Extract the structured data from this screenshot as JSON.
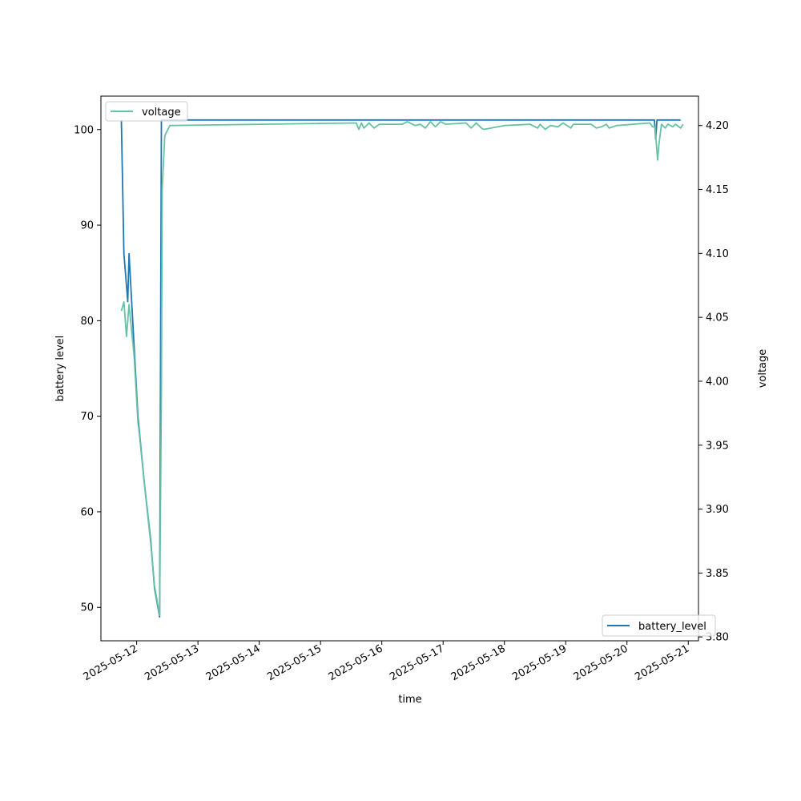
{
  "chart_data": {
    "type": "line",
    "title": "",
    "xlabel": "time",
    "ylabel_left": "battery level",
    "ylabel_right": "voltage",
    "xlim": [
      "2025-05-11 10:00",
      "2025-05-21 04:00"
    ],
    "ylim_left": [
      46.5,
      103.5
    ],
    "ylim_right": [
      3.797,
      4.223
    ],
    "x_ticks": [
      "2025-05-12",
      "2025-05-13",
      "2025-05-14",
      "2025-05-15",
      "2025-05-16",
      "2025-05-17",
      "2025-05-18",
      "2025-05-19",
      "2025-05-20",
      "2025-05-21"
    ],
    "y_ticks_left": [
      50,
      60,
      70,
      80,
      90,
      100
    ],
    "y_ticks_right": [
      "3.80",
      "3.85",
      "3.90",
      "3.95",
      "4.00",
      "4.05",
      "4.10",
      "4.15",
      "4.20"
    ],
    "grid": false,
    "series": [
      {
        "name": "battery_level",
        "axis": "left",
        "color": "#1f77b4",
        "legend_position": "lower-right",
        "points": [
          [
            "2025-05-11 18:00",
            101
          ],
          [
            "2025-05-11 19:00",
            87
          ],
          [
            "2025-05-11 20:30",
            82
          ],
          [
            "2025-05-11 21:00",
            87
          ],
          [
            "2025-05-12 00:30",
            70
          ],
          [
            "2025-05-12 03:00",
            63
          ],
          [
            "2025-05-12 05:30",
            57
          ],
          [
            "2025-05-12 07:00",
            52
          ],
          [
            "2025-05-12 09:00",
            49
          ],
          [
            "2025-05-12 09:40",
            101
          ],
          [
            "2025-05-20 09:00",
            101
          ],
          [
            "2025-05-20 10:45",
            101
          ],
          [
            "2025-05-20 11:15",
            99
          ],
          [
            "2025-05-20 11:45",
            101
          ],
          [
            "2025-05-20 21:00",
            101
          ]
        ]
      },
      {
        "name": "voltage",
        "axis": "right",
        "color": "#66c2a5",
        "legend_position": "upper-left",
        "points": [
          [
            "2025-05-11 18:00",
            4.055
          ],
          [
            "2025-05-11 19:00",
            4.062
          ],
          [
            "2025-05-11 20:00",
            4.035
          ],
          [
            "2025-05-11 21:00",
            4.06
          ],
          [
            "2025-05-11 23:00",
            4.02
          ],
          [
            "2025-05-12 00:30",
            3.968
          ],
          [
            "2025-05-12 01:00",
            3.96
          ],
          [
            "2025-05-12 03:00",
            3.92
          ],
          [
            "2025-05-12 05:30",
            3.873
          ],
          [
            "2025-05-12 07:00",
            3.84
          ],
          [
            "2025-05-12 09:00",
            3.817
          ],
          [
            "2025-05-12 09:40",
            3.99
          ],
          [
            "2025-05-12 10:00",
            4.15
          ],
          [
            "2025-05-12 11:00",
            4.192
          ],
          [
            "2025-05-12 13:00",
            4.2
          ],
          [
            "2025-05-15 14:00",
            4.202
          ],
          [
            "2025-05-15 15:00",
            4.197
          ],
          [
            "2025-05-15 16:00",
            4.202
          ],
          [
            "2025-05-15 17:00",
            4.198
          ],
          [
            "2025-05-15 19:00",
            4.202
          ],
          [
            "2025-05-15 21:00",
            4.198
          ],
          [
            "2025-05-15 23:00",
            4.201
          ],
          [
            "2025-05-16 08:00",
            4.201
          ],
          [
            "2025-05-16 10:00",
            4.203
          ],
          [
            "2025-05-16 13:00",
            4.2
          ],
          [
            "2025-05-16 15:00",
            4.201
          ],
          [
            "2025-05-16 17:00",
            4.198
          ],
          [
            "2025-05-16 19:00",
            4.203
          ],
          [
            "2025-05-16 21:00",
            4.199
          ],
          [
            "2025-05-16 23:00",
            4.203
          ],
          [
            "2025-05-17 01:00",
            4.201
          ],
          [
            "2025-05-17 09:00",
            4.202
          ],
          [
            "2025-05-17 11:00",
            4.198
          ],
          [
            "2025-05-17 13:00",
            4.202
          ],
          [
            "2025-05-17 15:00",
            4.198
          ],
          [
            "2025-05-17 16:00",
            4.197
          ],
          [
            "2025-05-18 00:00",
            4.2
          ],
          [
            "2025-05-18 10:00",
            4.201
          ],
          [
            "2025-05-18 13:00",
            4.198
          ],
          [
            "2025-05-18 14:00",
            4.201
          ],
          [
            "2025-05-18 16:00",
            4.197
          ],
          [
            "2025-05-18 18:00",
            4.2
          ],
          [
            "2025-05-18 21:00",
            4.199
          ],
          [
            "2025-05-18 23:00",
            4.202
          ],
          [
            "2025-05-19 02:00",
            4.198
          ],
          [
            "2025-05-19 03:00",
            4.201
          ],
          [
            "2025-05-19 10:00",
            4.201
          ],
          [
            "2025-05-19 12:00",
            4.198
          ],
          [
            "2025-05-19 14:00",
            4.199
          ],
          [
            "2025-05-19 16:00",
            4.201
          ],
          [
            "2025-05-19 17:00",
            4.198
          ],
          [
            "2025-05-19 20:00",
            4.2
          ],
          [
            "2025-05-20 09:00",
            4.202
          ],
          [
            "2025-05-20 10:00",
            4.199
          ],
          [
            "2025-05-20 11:00",
            4.199
          ],
          [
            "2025-05-20 12:00",
            4.173
          ],
          [
            "2025-05-20 12:30",
            4.185
          ],
          [
            "2025-05-20 13:30",
            4.201
          ],
          [
            "2025-05-20 15:00",
            4.198
          ],
          [
            "2025-05-20 16:00",
            4.201
          ],
          [
            "2025-05-20 18:00",
            4.199
          ],
          [
            "2025-05-20 19:00",
            4.201
          ],
          [
            "2025-05-20 21:00",
            4.198
          ],
          [
            "2025-05-20 22:00",
            4.201
          ]
        ]
      }
    ]
  }
}
